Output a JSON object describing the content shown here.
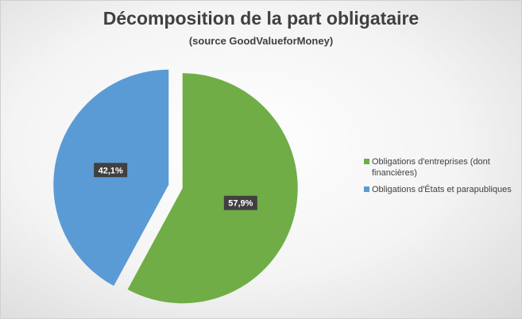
{
  "chart_data": {
    "type": "pie",
    "title": "Décomposition de la part obligataire",
    "subtitle": "(source GoodValueforMoney)",
    "slices": [
      {
        "label": "Obligations d'entreprises (dont financières)",
        "value": 57.9,
        "data_label": "57,9%",
        "color": "#70AD47"
      },
      {
        "label": "Obligations d'États et parapubliques",
        "value": 42.1,
        "data_label": "42,1%",
        "color": "#5B9BD5"
      }
    ],
    "legend_position": "right",
    "exploded": true
  }
}
